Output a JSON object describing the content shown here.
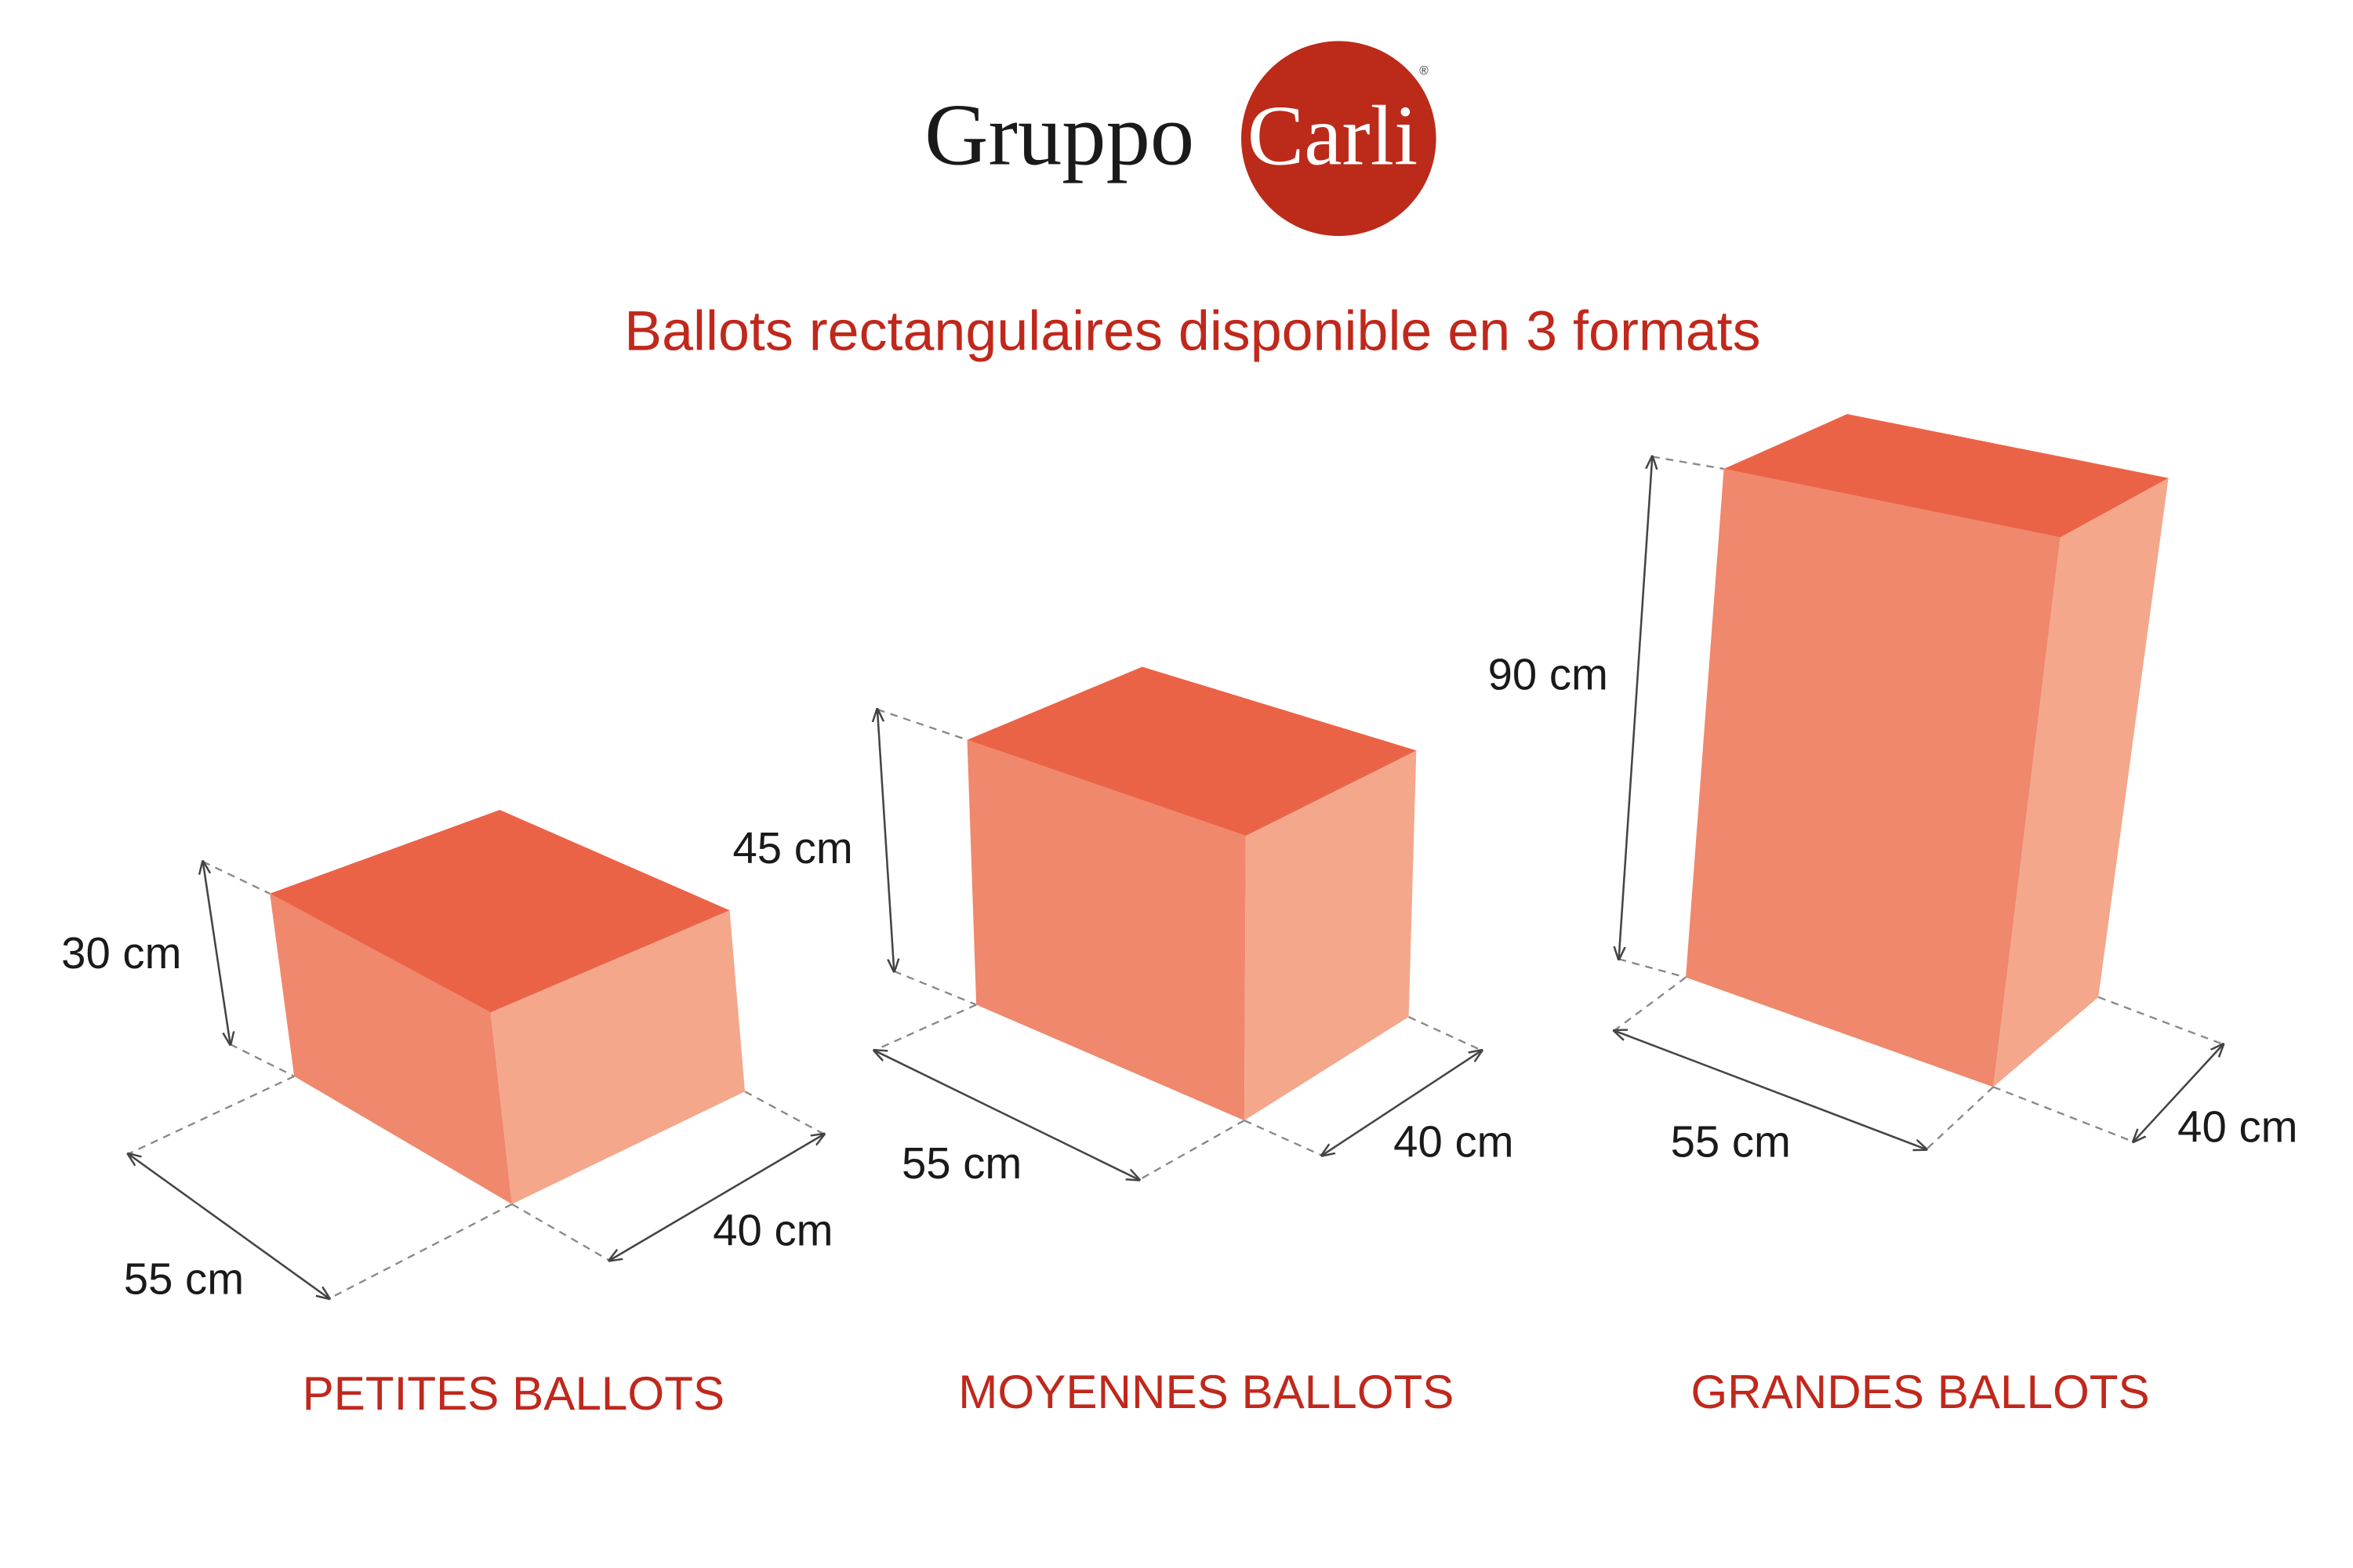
{
  "logo": {
    "word1": "Gruppo",
    "word2": "Carli",
    "mark": "®",
    "circle_color": "#bc2a1a"
  },
  "title": "Ballots rectangulaires disponible en 3 formats",
  "colors": {
    "top": "#eb6347",
    "front": "#ef886c",
    "side": "#f4a78b",
    "accent": "#c0281c"
  },
  "formats": [
    {
      "name": "PETITES BALLOTS",
      "height": "30 cm",
      "length": "55 cm",
      "width": "40 cm"
    },
    {
      "name": "MOYENNES BALLOTS",
      "height": "45 cm",
      "length": "55 cm",
      "width": "40 cm"
    },
    {
      "name": "GRANDES BALLOTS",
      "height": "90 cm",
      "length": "55 cm",
      "width": "40 cm"
    }
  ]
}
